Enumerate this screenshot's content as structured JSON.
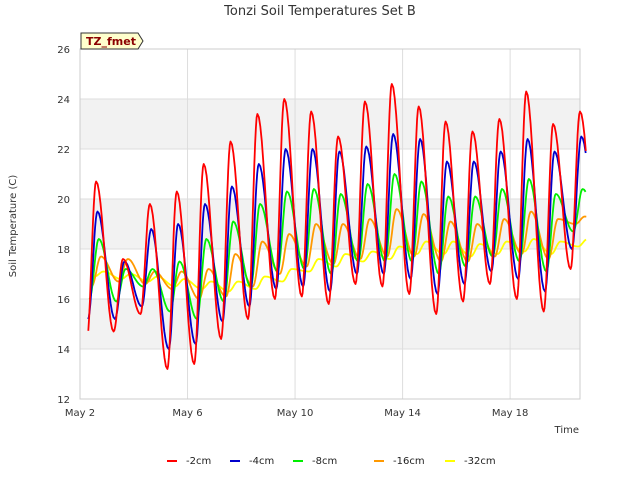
{
  "chart_data": {
    "type": "line",
    "title": "Tonzi Soil Temperatures Set B",
    "xlabel": "Time",
    "ylabel": "Soil Temperature (C)",
    "tag": "TZ_fmet",
    "ylim": [
      12,
      26
    ],
    "yticks": [
      12,
      14,
      16,
      18,
      20,
      22,
      24,
      26
    ],
    "xlim": [
      2.0,
      20.6
    ],
    "xticks": [
      {
        "value": 2,
        "label": "May 2"
      },
      {
        "value": 6,
        "label": "May 6"
      },
      {
        "value": 10,
        "label": "May 10"
      },
      {
        "value": 14,
        "label": "May 14"
      },
      {
        "value": 18,
        "label": "May 18"
      }
    ],
    "band_fill": "#f2f2f2",
    "grid": true,
    "legend_position": "bottom",
    "series": [
      {
        "name": "-2cm",
        "color": "#ff0000",
        "peaks": [
          20.7,
          17.6,
          19.8,
          20.3,
          21.4,
          22.3,
          23.4,
          24.0,
          23.5,
          22.5,
          23.9,
          24.6,
          23.7,
          23.1,
          22.7,
          23.2,
          24.3,
          23.0,
          23.5
        ],
        "troughs": [
          14.3,
          14.7,
          15.4,
          13.2,
          13.4,
          14.4,
          15.2,
          16.0,
          16.1,
          15.8,
          16.6,
          16.5,
          16.2,
          15.4,
          15.9,
          16.6,
          16.0,
          15.5,
          17.2
        ]
      },
      {
        "name": "-4cm",
        "color": "#0000cc",
        "peaks": [
          19.5,
          17.5,
          18.8,
          19.0,
          19.8,
          20.5,
          21.4,
          22.0,
          22.0,
          21.9,
          22.1,
          22.6,
          22.4,
          21.5,
          21.5,
          21.9,
          22.4,
          21.9,
          22.5
        ],
        "troughs": [
          15.2,
          15.2,
          15.7,
          14.0,
          14.2,
          15.1,
          15.7,
          16.4,
          16.5,
          16.3,
          17.0,
          17.0,
          16.8,
          16.2,
          16.6,
          17.1,
          16.8,
          16.3,
          18.0
        ]
      },
      {
        "name": "-8cm",
        "color": "#00ee00",
        "peaks": [
          18.4,
          17.2,
          17.2,
          17.5,
          18.4,
          19.1,
          19.8,
          20.3,
          20.4,
          20.2,
          20.6,
          21.0,
          20.7,
          20.1,
          20.1,
          20.4,
          20.8,
          20.2,
          20.4
        ],
        "troughs": [
          16.0,
          15.9,
          16.5,
          15.5,
          15.2,
          15.9,
          16.5,
          17.1,
          17.2,
          17.0,
          17.5,
          17.5,
          17.5,
          17.0,
          17.3,
          17.7,
          17.5,
          17.1,
          18.7
        ]
      },
      {
        "name": "-16cm",
        "color": "#ff9900",
        "peaks": [
          17.7,
          17.6,
          17.1,
          17.1,
          17.2,
          17.8,
          18.3,
          18.6,
          19.0,
          19.0,
          19.2,
          19.6,
          19.4,
          19.1,
          19.0,
          19.2,
          19.5,
          19.2,
          19.3
        ],
        "troughs": [
          16.5,
          16.7,
          16.6,
          16.4,
          16.0,
          16.1,
          16.5,
          17.0,
          17.3,
          17.4,
          17.6,
          17.7,
          17.7,
          17.5,
          17.5,
          17.7,
          17.8,
          17.6,
          19.0
        ]
      },
      {
        "name": "-32cm",
        "color": "#ffff00",
        "peaks": [
          17.1,
          17.0,
          16.9,
          16.8,
          16.7,
          16.7,
          16.9,
          17.2,
          17.6,
          17.8,
          17.9,
          18.1,
          18.3,
          18.3,
          18.2,
          18.3,
          18.4,
          18.3,
          18.4
        ],
        "troughs": [
          16.9,
          16.8,
          16.7,
          16.5,
          16.4,
          16.3,
          16.4,
          16.7,
          17.1,
          17.3,
          17.5,
          17.6,
          17.8,
          17.8,
          17.7,
          17.8,
          17.9,
          17.8,
          18.1
        ]
      }
    ]
  }
}
